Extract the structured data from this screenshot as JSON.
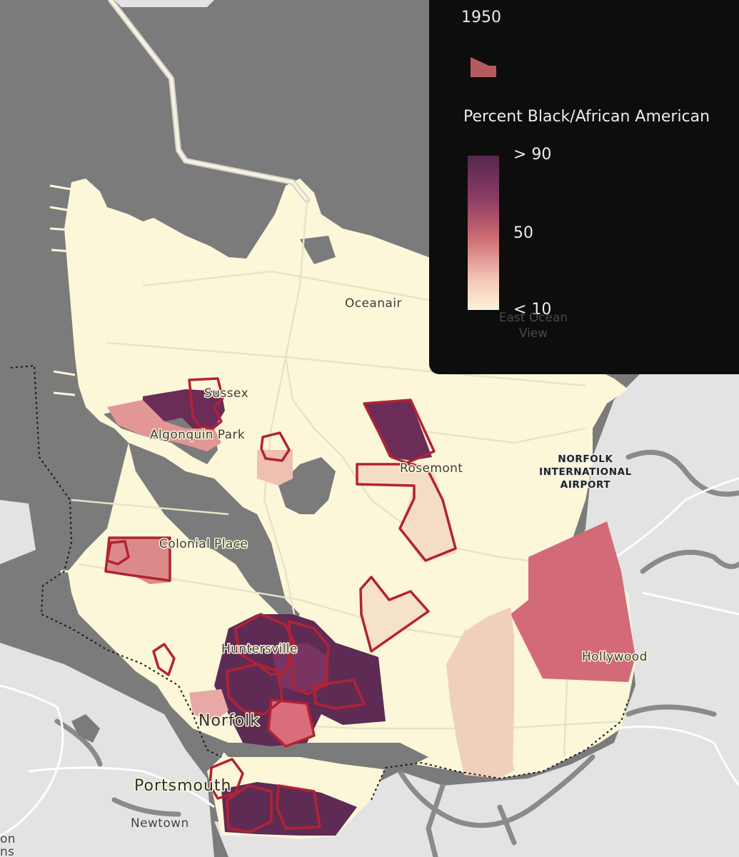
{
  "legend": {
    "year": "1950",
    "title": "Percent Black/African American",
    "ticks": {
      "high": "> 90",
      "mid": "50",
      "low": "< 10"
    },
    "swatch_color": "#b65a60",
    "ramp_colors": [
      "#54284f",
      "#8d3d63",
      "#cc6b72",
      "#f3c5b6",
      "#fbf2d9"
    ]
  },
  "places": {
    "oceanair": "Oceanair",
    "east_ocean_view_line1": "East Ocean",
    "east_ocean_view_line2": "View",
    "sussex": "Sussex",
    "algonquin_park": "Algonquin Park",
    "rosemont": "Rosemont",
    "airport_line1": "NORFOLK",
    "airport_line2": "INTERNATIONAL",
    "airport_line3": "AIRPORT",
    "colonial_place": "Colonial Place",
    "huntersville": "Huntersville",
    "hollywood": "Hollywood",
    "norfolk": "Norfolk",
    "portsmouth": "Portsmouth",
    "newtown": "Newtown",
    "edge_on": "on",
    "edge_ns": "ns"
  },
  "colors": {
    "water": "#7b7b7b",
    "land_outside": "#e3e3e3",
    "land_norfolk": "#fbf7d8",
    "redline": "#b22234"
  }
}
